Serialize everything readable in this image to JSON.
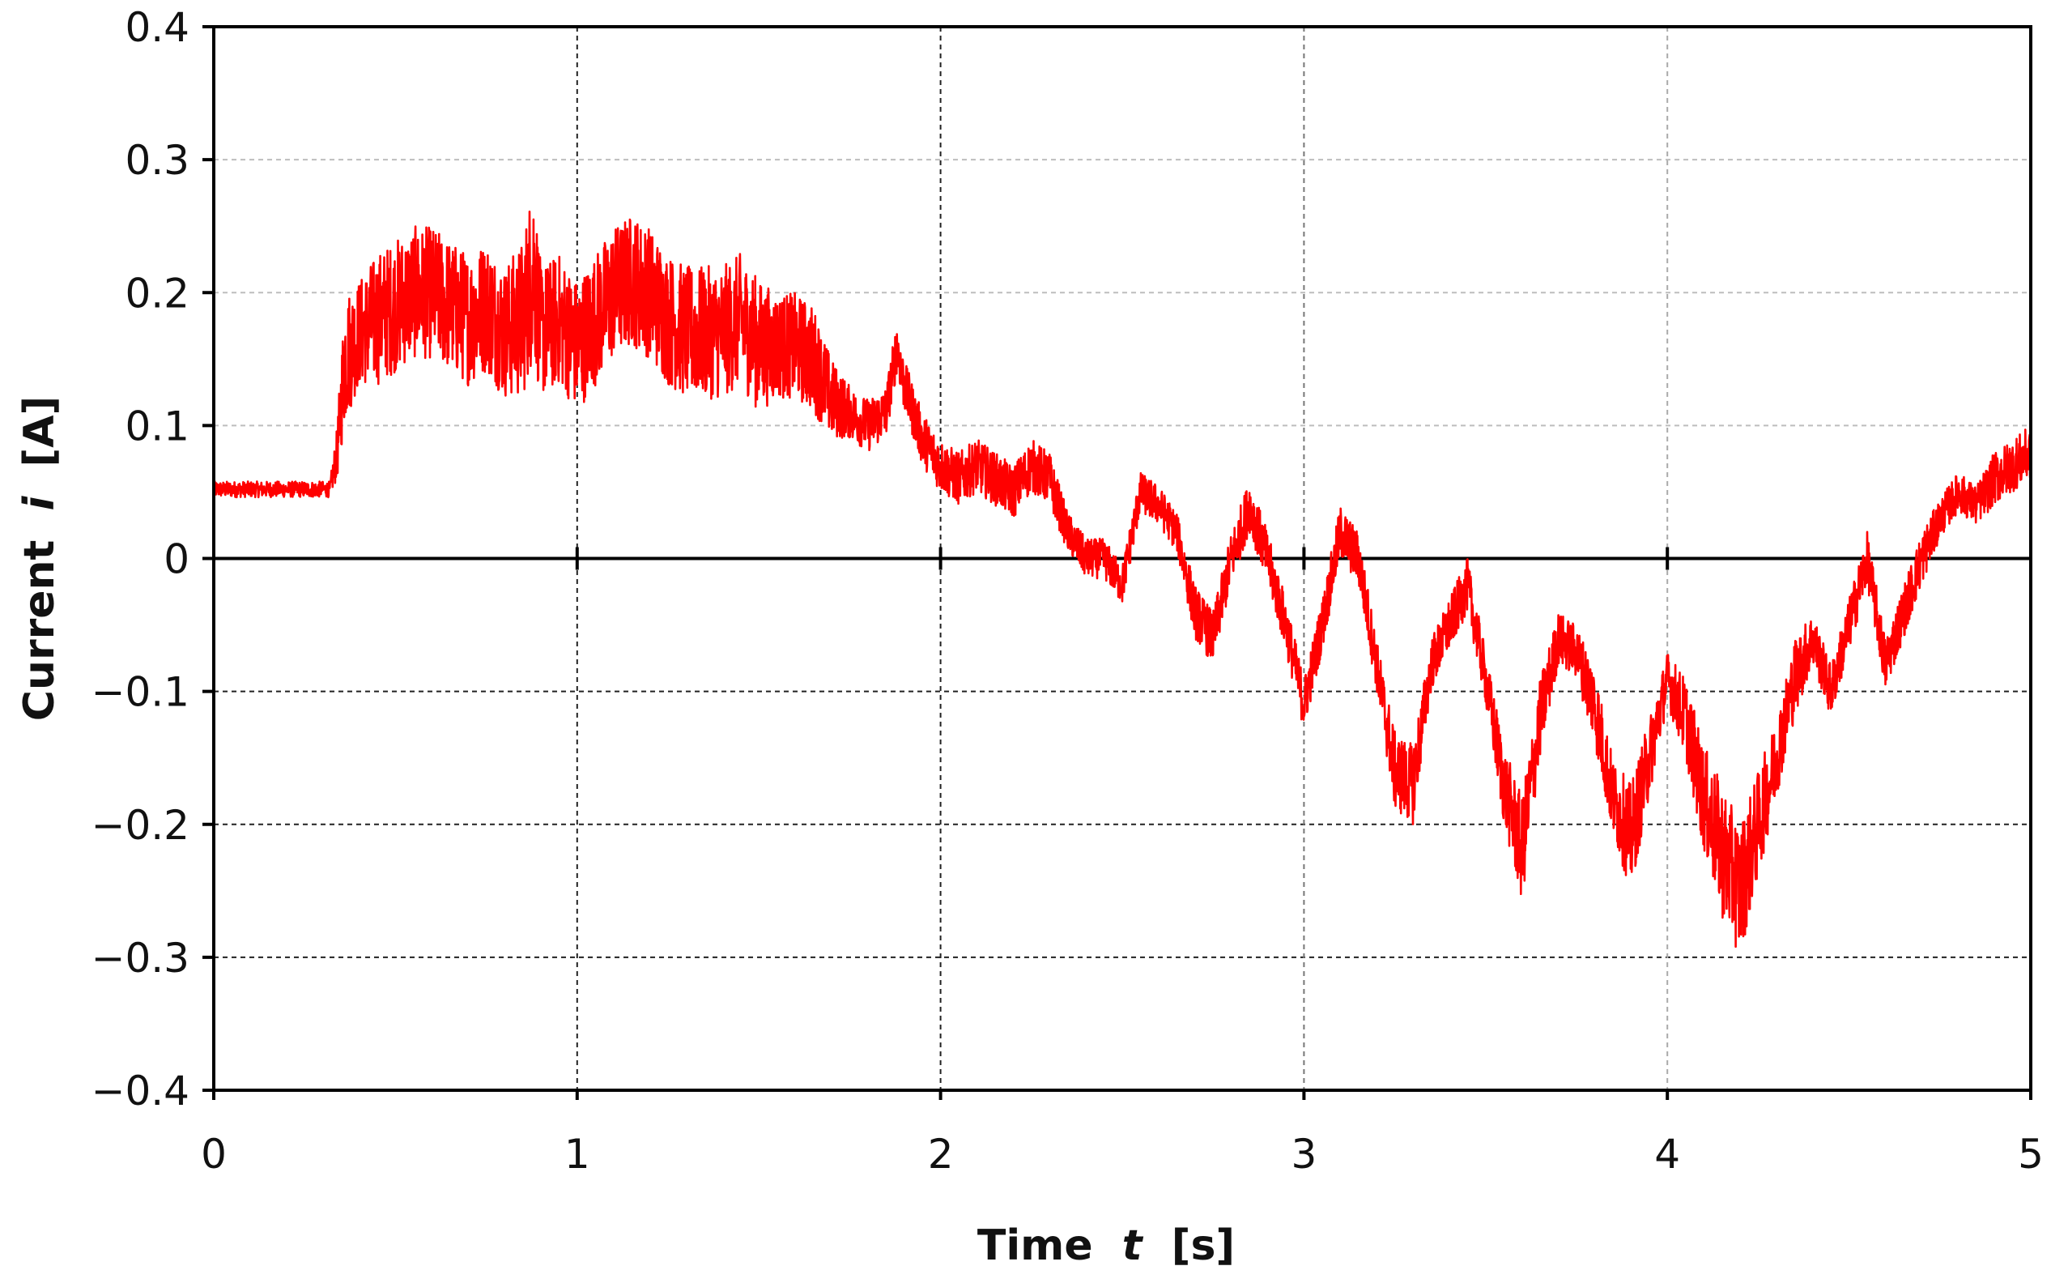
{
  "chart_data": {
    "type": "line",
    "title": "",
    "xlabel": {
      "prefix": "Time",
      "variable": "t",
      "unit": "[s]"
    },
    "ylabel": {
      "prefix": "Current",
      "variable": "i",
      "unit": "[A]"
    },
    "xlim": [
      0,
      5
    ],
    "ylim": [
      -0.4,
      0.4
    ],
    "x_ticks": [
      0,
      1,
      2,
      3,
      4,
      5
    ],
    "x_tick_labels": [
      "0",
      "1",
      "2",
      "3",
      "4",
      "5"
    ],
    "y_ticks": [
      0.4,
      0.3,
      0.2,
      0.1,
      0,
      -0.1,
      -0.2,
      -0.3,
      -0.4
    ],
    "y_tick_labels": [
      "0.4",
      "0.3",
      "0.2",
      "0.1",
      "0",
      "−0.1",
      "−0.2",
      "−0.3",
      "−0.4"
    ],
    "grid": true,
    "legend": "none",
    "series": [
      {
        "color": "#ff0000",
        "envelope_note": "noisy signal; points are (t, center, band half-width)",
        "points": [
          [
            0.0,
            0.052,
            0.006
          ],
          [
            0.32,
            0.052,
            0.006
          ],
          [
            0.34,
            0.08,
            0.02
          ],
          [
            0.36,
            0.15,
            0.05
          ],
          [
            0.4,
            0.17,
            0.04
          ],
          [
            0.45,
            0.18,
            0.05
          ],
          [
            0.5,
            0.19,
            0.05
          ],
          [
            0.55,
            0.2,
            0.05
          ],
          [
            0.6,
            0.2,
            0.05
          ],
          [
            0.65,
            0.19,
            0.05
          ],
          [
            0.7,
            0.18,
            0.05
          ],
          [
            0.75,
            0.19,
            0.05
          ],
          [
            0.8,
            0.17,
            0.05
          ],
          [
            0.85,
            0.18,
            0.06
          ],
          [
            0.88,
            0.22,
            0.07
          ],
          [
            0.9,
            0.17,
            0.05
          ],
          [
            0.95,
            0.18,
            0.05
          ],
          [
            1.0,
            0.16,
            0.05
          ],
          [
            1.05,
            0.18,
            0.05
          ],
          [
            1.1,
            0.2,
            0.05
          ],
          [
            1.15,
            0.21,
            0.05
          ],
          [
            1.2,
            0.2,
            0.05
          ],
          [
            1.25,
            0.18,
            0.05
          ],
          [
            1.3,
            0.17,
            0.05
          ],
          [
            1.35,
            0.17,
            0.05
          ],
          [
            1.4,
            0.17,
            0.05
          ],
          [
            1.45,
            0.18,
            0.05
          ],
          [
            1.5,
            0.16,
            0.05
          ],
          [
            1.55,
            0.16,
            0.04
          ],
          [
            1.6,
            0.16,
            0.04
          ],
          [
            1.65,
            0.15,
            0.04
          ],
          [
            1.7,
            0.12,
            0.03
          ],
          [
            1.75,
            0.11,
            0.02
          ],
          [
            1.8,
            0.1,
            0.02
          ],
          [
            1.85,
            0.11,
            0.02
          ],
          [
            1.88,
            0.16,
            0.02
          ],
          [
            1.9,
            0.13,
            0.02
          ],
          [
            1.95,
            0.09,
            0.02
          ],
          [
            2.0,
            0.07,
            0.02
          ],
          [
            2.05,
            0.06,
            0.02
          ],
          [
            2.1,
            0.07,
            0.02
          ],
          [
            2.15,
            0.06,
            0.02
          ],
          [
            2.2,
            0.05,
            0.02
          ],
          [
            2.25,
            0.07,
            0.02
          ],
          [
            2.3,
            0.06,
            0.02
          ],
          [
            2.35,
            0.02,
            0.015
          ],
          [
            2.4,
            0.0,
            0.015
          ],
          [
            2.45,
            0.0,
            0.015
          ],
          [
            2.5,
            -0.02,
            0.015
          ],
          [
            2.55,
            0.05,
            0.015
          ],
          [
            2.6,
            0.04,
            0.015
          ],
          [
            2.65,
            0.02,
            0.015
          ],
          [
            2.7,
            -0.04,
            0.02
          ],
          [
            2.75,
            -0.06,
            0.02
          ],
          [
            2.8,
            0.0,
            0.02
          ],
          [
            2.85,
            0.04,
            0.02
          ],
          [
            2.9,
            0.0,
            0.02
          ],
          [
            2.95,
            -0.05,
            0.02
          ],
          [
            3.0,
            -0.11,
            0.02
          ],
          [
            3.05,
            -0.05,
            0.02
          ],
          [
            3.1,
            0.02,
            0.02
          ],
          [
            3.15,
            0.0,
            0.02
          ],
          [
            3.2,
            -0.08,
            0.02
          ],
          [
            3.25,
            -0.16,
            0.03
          ],
          [
            3.3,
            -0.17,
            0.03
          ],
          [
            3.35,
            -0.08,
            0.02
          ],
          [
            3.4,
            -0.05,
            0.02
          ],
          [
            3.45,
            -0.02,
            0.02
          ],
          [
            3.5,
            -0.09,
            0.02
          ],
          [
            3.55,
            -0.17,
            0.03
          ],
          [
            3.6,
            -0.22,
            0.04
          ],
          [
            3.65,
            -0.12,
            0.03
          ],
          [
            3.7,
            -0.06,
            0.02
          ],
          [
            3.75,
            -0.07,
            0.02
          ],
          [
            3.8,
            -0.11,
            0.03
          ],
          [
            3.85,
            -0.18,
            0.03
          ],
          [
            3.9,
            -0.21,
            0.04
          ],
          [
            3.95,
            -0.15,
            0.03
          ],
          [
            4.0,
            -0.09,
            0.02
          ],
          [
            4.05,
            -0.12,
            0.03
          ],
          [
            4.1,
            -0.18,
            0.04
          ],
          [
            4.15,
            -0.22,
            0.05
          ],
          [
            4.2,
            -0.25,
            0.05
          ],
          [
            4.25,
            -0.2,
            0.04
          ],
          [
            4.3,
            -0.15,
            0.03
          ],
          [
            4.35,
            -0.09,
            0.03
          ],
          [
            4.4,
            -0.06,
            0.02
          ],
          [
            4.45,
            -0.1,
            0.02
          ],
          [
            4.5,
            -0.05,
            0.02
          ],
          [
            4.55,
            0.0,
            0.02
          ],
          [
            4.6,
            -0.08,
            0.02
          ],
          [
            4.65,
            -0.04,
            0.02
          ],
          [
            4.7,
            0.0,
            0.02
          ],
          [
            4.75,
            0.03,
            0.015
          ],
          [
            4.8,
            0.05,
            0.015
          ],
          [
            4.85,
            0.04,
            0.015
          ],
          [
            4.9,
            0.06,
            0.02
          ],
          [
            4.95,
            0.07,
            0.02
          ],
          [
            5.0,
            0.08,
            0.02
          ]
        ]
      }
    ]
  }
}
